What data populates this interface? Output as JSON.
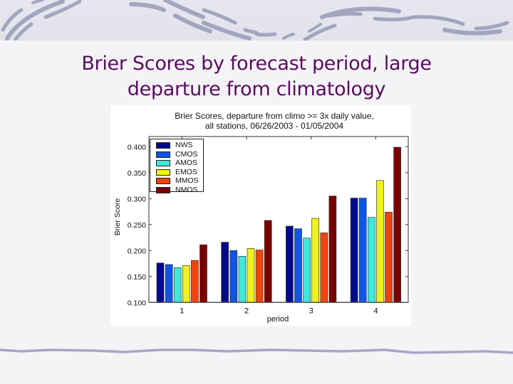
{
  "slide": {
    "title_line1": "Brier Scores by forecast period, large",
    "title_line2": "departure from climatology",
    "title_color": "#5a0c5e"
  },
  "chart_data": {
    "type": "bar",
    "title": "Brier Scores, departure from climo >= 3x daily value, all stations, 06/26/2003 - 01/05/2004",
    "title_lines": [
      "Brier Scores, departure from climo >= 3x daily value,",
      "all stations, 06/26/2003 - 01/05/2004"
    ],
    "xlabel": "period",
    "ylabel": "Brier Score",
    "categories": [
      "1",
      "2",
      "3",
      "4"
    ],
    "ylim": [
      0.1,
      0.42
    ],
    "yticks": [
      "0.100",
      "0.150",
      "0.200",
      "0.250",
      "0.300",
      "0.350",
      "0.400"
    ],
    "grid": false,
    "legend_position": "upper left",
    "series": [
      {
        "name": "NWS",
        "color": "#000a8c",
        "values": [
          0.176,
          0.216,
          0.247,
          0.301
        ]
      },
      {
        "name": "CMOS",
        "color": "#0f55e6",
        "values": [
          0.173,
          0.2,
          0.242,
          0.301
        ]
      },
      {
        "name": "AMOS",
        "color": "#3ee8da",
        "values": [
          0.167,
          0.189,
          0.224,
          0.264
        ]
      },
      {
        "name": "EMOS",
        "color": "#f0f020",
        "values": [
          0.171,
          0.204,
          0.262,
          0.335
        ]
      },
      {
        "name": "MMOS",
        "color": "#f0440a",
        "values": [
          0.181,
          0.201,
          0.234,
          0.274
        ]
      },
      {
        "name": "NMOS",
        "color": "#7a0000",
        "values": [
          0.211,
          0.258,
          0.305,
          0.399
        ]
      }
    ]
  }
}
